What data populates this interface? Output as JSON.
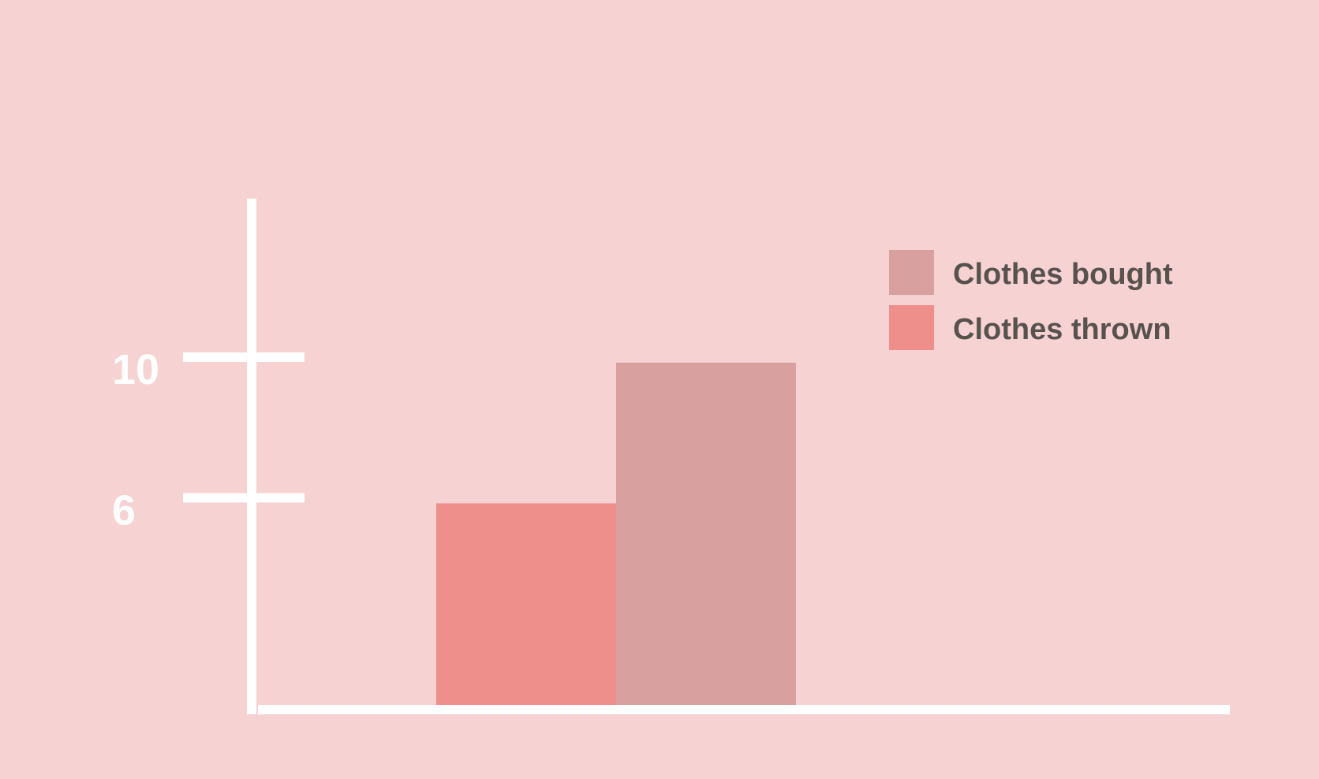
{
  "colors": {
    "background": "#f7d2d2",
    "axis": "#ffffff",
    "tick_label": "#ffffff",
    "legend_text": "#58524f"
  },
  "chart_data": {
    "type": "bar",
    "ylim": [
      0,
      16
    ],
    "yticks": [
      6,
      10
    ],
    "ytick_labels": [
      "6",
      "10"
    ],
    "grid": false,
    "legend_position": "top-right",
    "series": [
      {
        "name": "Clothes thrown",
        "value": 6,
        "color": "#ef8f8b"
      },
      {
        "name": "Clothes bought",
        "value": 10,
        "color": "#d8a1a0"
      }
    ],
    "legend": [
      {
        "label": "Clothes bought",
        "color": "#d8a1a0"
      },
      {
        "label": "Clothes thrown",
        "color": "#ef8f8b"
      }
    ]
  }
}
